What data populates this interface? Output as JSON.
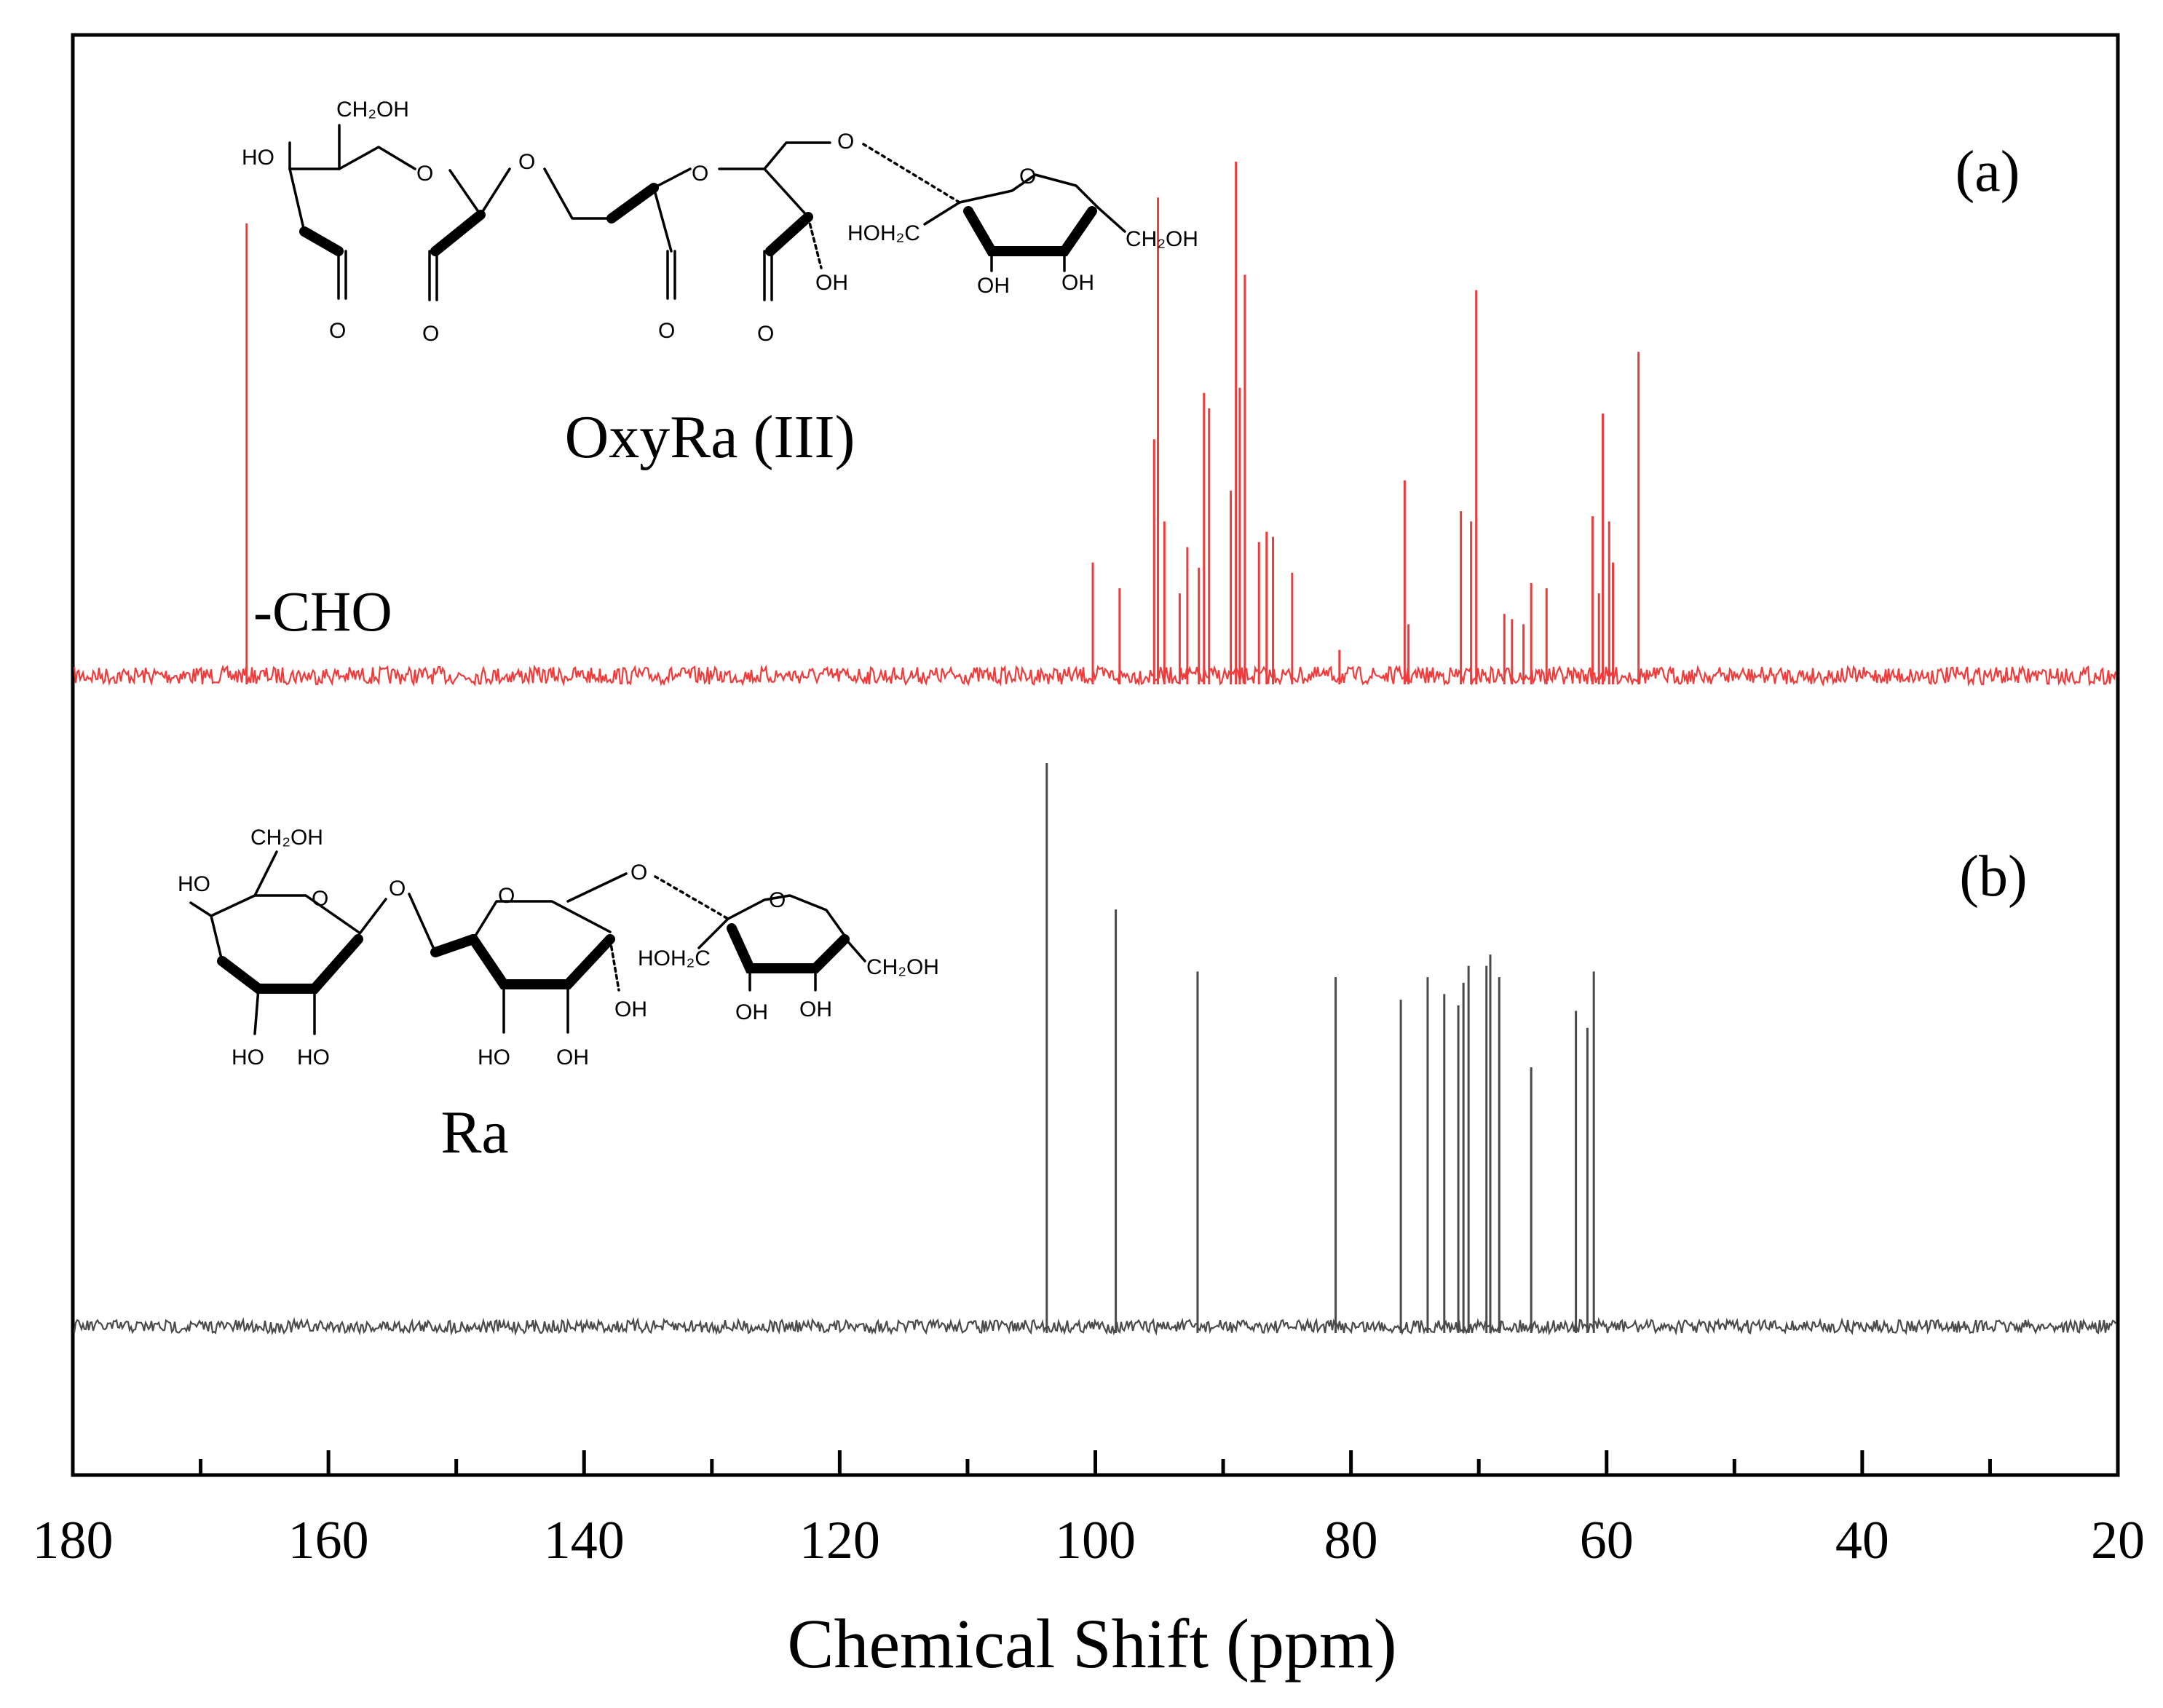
{
  "chart_data": {
    "type": "line",
    "title": "",
    "xlabel": "Chemical Shift (ppm)",
    "ylabel": "",
    "xlim": [
      180,
      20
    ],
    "x_reversed": true,
    "xticks": [
      180,
      160,
      140,
      120,
      100,
      80,
      60,
      40,
      20
    ],
    "minor_tick_step": 10,
    "grid": false,
    "legend": "none",
    "colors": {
      "a": "#ee3b3b",
      "b": "#4a4a4a",
      "axis": "#000000"
    },
    "series": [
      {
        "name": "OxyRa (III)",
        "panel": "(a)",
        "color": "#ee3b3b",
        "peaks": [
          {
            "ppm": 166.4,
            "h": 0.88
          },
          {
            "ppm": 100.2,
            "h": 0.22
          },
          {
            "ppm": 98.1,
            "h": 0.17
          },
          {
            "ppm": 95.4,
            "h": 0.46
          },
          {
            "ppm": 95.1,
            "h": 0.93
          },
          {
            "ppm": 94.6,
            "h": 0.3
          },
          {
            "ppm": 93.4,
            "h": 0.16
          },
          {
            "ppm": 92.8,
            "h": 0.25
          },
          {
            "ppm": 91.9,
            "h": 0.21
          },
          {
            "ppm": 91.5,
            "h": 0.55
          },
          {
            "ppm": 91.1,
            "h": 0.52
          },
          {
            "ppm": 89.4,
            "h": 0.36
          },
          {
            "ppm": 89.0,
            "h": 1.0
          },
          {
            "ppm": 88.7,
            "h": 0.56
          },
          {
            "ppm": 88.3,
            "h": 0.78
          },
          {
            "ppm": 87.2,
            "h": 0.26
          },
          {
            "ppm": 86.6,
            "h": 0.28
          },
          {
            "ppm": 86.1,
            "h": 0.27
          },
          {
            "ppm": 84.6,
            "h": 0.2
          },
          {
            "ppm": 80.9,
            "h": 0.05
          },
          {
            "ppm": 75.8,
            "h": 0.38
          },
          {
            "ppm": 75.5,
            "h": 0.1
          },
          {
            "ppm": 71.4,
            "h": 0.32
          },
          {
            "ppm": 70.6,
            "h": 0.3
          },
          {
            "ppm": 70.2,
            "h": 0.75
          },
          {
            "ppm": 68.0,
            "h": 0.12
          },
          {
            "ppm": 67.4,
            "h": 0.11
          },
          {
            "ppm": 66.5,
            "h": 0.1
          },
          {
            "ppm": 65.9,
            "h": 0.18
          },
          {
            "ppm": 64.7,
            "h": 0.17
          },
          {
            "ppm": 61.1,
            "h": 0.31
          },
          {
            "ppm": 60.6,
            "h": 0.16
          },
          {
            "ppm": 60.3,
            "h": 0.51
          },
          {
            "ppm": 59.8,
            "h": 0.3
          },
          {
            "ppm": 59.5,
            "h": 0.22
          },
          {
            "ppm": 57.5,
            "h": 0.63
          }
        ]
      },
      {
        "name": "Ra",
        "panel": "(b)",
        "color": "#4a4a4a",
        "peaks": [
          {
            "ppm": 103.8,
            "h": 1.0
          },
          {
            "ppm": 98.4,
            "h": 0.74
          },
          {
            "ppm": 92.0,
            "h": 0.63
          },
          {
            "ppm": 81.2,
            "h": 0.62
          },
          {
            "ppm": 76.1,
            "h": 0.58
          },
          {
            "ppm": 74.0,
            "h": 0.62
          },
          {
            "ppm": 72.7,
            "h": 0.59
          },
          {
            "ppm": 71.6,
            "h": 0.57
          },
          {
            "ppm": 71.2,
            "h": 0.61
          },
          {
            "ppm": 70.8,
            "h": 0.64
          },
          {
            "ppm": 69.4,
            "h": 0.64
          },
          {
            "ppm": 69.1,
            "h": 0.66
          },
          {
            "ppm": 68.4,
            "h": 0.62
          },
          {
            "ppm": 65.9,
            "h": 0.46
          },
          {
            "ppm": 62.4,
            "h": 0.56
          },
          {
            "ppm": 61.5,
            "h": 0.53
          },
          {
            "ppm": 61.0,
            "h": 0.63
          }
        ]
      }
    ],
    "annotations": {
      "panel_a": "(a)",
      "panel_b": "(b)",
      "compound_a": "OxyRa (III)",
      "compound_b": "Ra",
      "peak_label": "-CHO"
    },
    "structure_labels": {
      "ch2oh": "CH₂OH",
      "hoh2c": "HOH₂C",
      "ho": "HO",
      "oh": "OH",
      "o": "O"
    }
  }
}
